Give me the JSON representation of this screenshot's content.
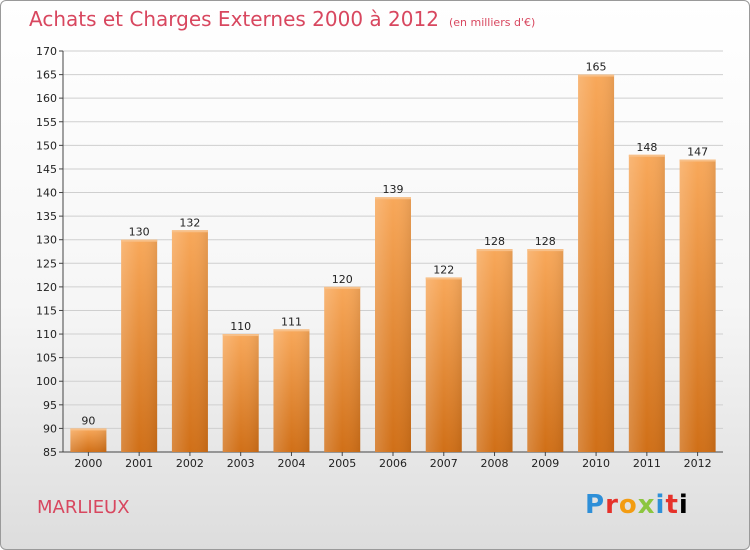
{
  "header": {
    "title": "Achats et Charges Externes 2000 à 2012",
    "unit": "(en milliers d'€)"
  },
  "footer": {
    "commune": "MARLIEUX",
    "logo_text": "Proxiti"
  },
  "colors": {
    "title": "#d8475f",
    "bar_light": "#f8a85a",
    "bar_dark": "#d06f17",
    "grid": "#cfcfcf"
  },
  "chart_data": {
    "type": "bar",
    "categories": [
      "2000",
      "2001",
      "2002",
      "2003",
      "2004",
      "2005",
      "2006",
      "2007",
      "2008",
      "2009",
      "2010",
      "2011",
      "2012"
    ],
    "values": [
      90,
      130,
      132,
      110,
      111,
      120,
      139,
      122,
      128,
      128,
      165,
      148,
      147
    ],
    "ylim": [
      85,
      170
    ],
    "yticks": [
      85,
      90,
      95,
      100,
      105,
      110,
      115,
      120,
      125,
      130,
      135,
      140,
      145,
      150,
      155,
      160,
      165,
      170
    ],
    "grid": true,
    "title": "Achats et Charges Externes 2000 à 2012",
    "xlabel": "",
    "ylabel": ""
  }
}
